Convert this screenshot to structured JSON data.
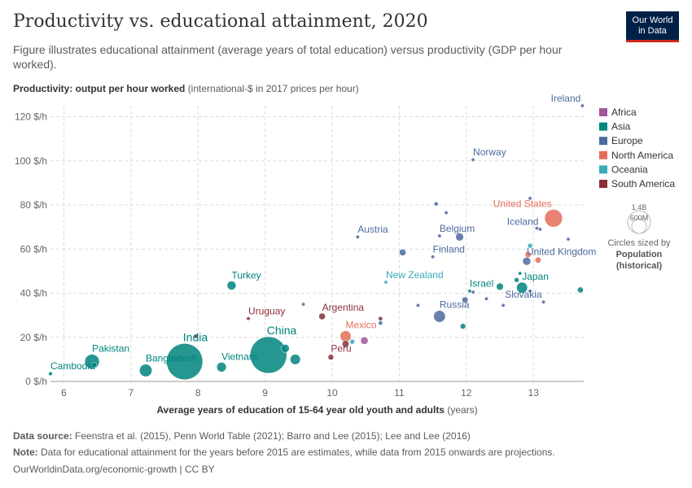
{
  "header": {
    "title": "Productivity vs. educational attainment, 2020",
    "subtitle": "Figure illustrates educational attainment (average years of total education) versus productivity (GDP per hour worked).",
    "logo_line1": "Our World",
    "logo_line2": "in Data"
  },
  "footer": {
    "source_label": "Data source:",
    "source_text": "Feenstra et al. (2015), Penn World Table (2021); Barro and Lee (2015); Lee and Lee (2016)",
    "note_label": "Note:",
    "note_text": "Data for educational attainment for the years before 2015 are estimates, while data from 2015 onwards are projections.",
    "credit": "OurWorldinData.org/economic-growth | CC BY"
  },
  "colors": {
    "Africa": "#a2559c",
    "Asia": "#00847e",
    "Europe": "#4c6a9c",
    "North America": "#e56e5a",
    "Oceania": "#38aaba",
    "South America": "#883039"
  },
  "chart_data": {
    "type": "scatter",
    "title": "Productivity vs. educational attainment, 2020",
    "ylabel_bold": "Productivity: output per hour worked",
    "ylabel_rest": "(international-$ in 2017 prices per hour)",
    "xlabel_bold": "Average years of education of 15-64 year old youth and adults",
    "xlabel_rest": "(years)",
    "xlim": [
      5.8,
      13.75
    ],
    "ylim": [
      0,
      125
    ],
    "x_ticks": [
      6,
      7,
      8,
      9,
      10,
      11,
      12,
      13
    ],
    "y_ticks": [
      0,
      20,
      40,
      60,
      80,
      100,
      120
    ],
    "y_tick_suffix": " $/h",
    "grid": true,
    "legend_position": "right",
    "size_legend": {
      "big": "1.4B",
      "small": "600M",
      "caption1": "Circles sized by",
      "caption2": "Population",
      "caption3": "(historical)"
    },
    "legend": [
      "Africa",
      "Asia",
      "Europe",
      "North America",
      "Oceania",
      "South America"
    ],
    "points": [
      {
        "label": "Ireland",
        "x": 13.73,
        "y": 125,
        "pop": 5,
        "region": "Europe"
      },
      {
        "label": "Norway",
        "x": 12.1,
        "y": 100.5,
        "pop": 5.4,
        "region": "Europe"
      },
      {
        "label": "United States",
        "x": 13.3,
        "y": 74,
        "pop": 331,
        "region": "North America"
      },
      {
        "label": "Iceland",
        "x": 13.1,
        "y": 69,
        "pop": 0.4,
        "region": "Europe"
      },
      {
        "label": "Austria",
        "x": 10.38,
        "y": 65.5,
        "pop": 9,
        "region": "Europe"
      },
      {
        "label": "Belgium",
        "x": 11.6,
        "y": 66,
        "pop": 11.5,
        "region": "Europe"
      },
      {
        "label": "Finland",
        "x": 11.5,
        "y": 56.5,
        "pop": 5.5,
        "region": "Europe"
      },
      {
        "label": "United Kingdom",
        "x": 12.9,
        "y": 54.5,
        "pop": 67,
        "region": "Europe"
      },
      {
        "label": "New Zealand",
        "x": 10.8,
        "y": 45,
        "pop": 5,
        "region": "Oceania"
      },
      {
        "label": "Japan",
        "x": 12.83,
        "y": 42.5,
        "pop": 126,
        "region": "Asia"
      },
      {
        "label": "Israel",
        "x": 12.05,
        "y": 41,
        "pop": 9,
        "region": "Asia"
      },
      {
        "label": "Slovakia",
        "x": 13.15,
        "y": 36,
        "pop": 5.5,
        "region": "Europe"
      },
      {
        "label": "Turkey",
        "x": 8.5,
        "y": 43.5,
        "pop": 84,
        "region": "Asia"
      },
      {
        "label": "Russia",
        "x": 11.6,
        "y": 29.5,
        "pop": 146,
        "region": "Europe"
      },
      {
        "label": "Argentina",
        "x": 9.85,
        "y": 29.5,
        "pop": 45,
        "region": "South America"
      },
      {
        "label": "Uruguay",
        "x": 8.75,
        "y": 28.5,
        "pop": 3.5,
        "region": "South America"
      },
      {
        "label": "Mexico",
        "x": 10.2,
        "y": 20.5,
        "pop": 129,
        "region": "North America"
      },
      {
        "label": "India",
        "x": 7.8,
        "y": 9,
        "pop": 1380,
        "region": "Asia"
      },
      {
        "label": "China",
        "x": 9.05,
        "y": 12,
        "pop": 1410,
        "region": "Asia"
      },
      {
        "label": "Peru",
        "x": 9.98,
        "y": 11,
        "pop": 33,
        "region": "South America"
      },
      {
        "label": "Pakistan",
        "x": 6.42,
        "y": 9,
        "pop": 220,
        "region": "Asia"
      },
      {
        "label": "Bangladesh",
        "x": 7.22,
        "y": 5,
        "pop": 165,
        "region": "Asia"
      },
      {
        "label": "Vietnam",
        "x": 8.35,
        "y": 6.5,
        "pop": 97,
        "region": "Asia"
      },
      {
        "label": "Cambodia",
        "x": 5.8,
        "y": 3.5,
        "pop": 16,
        "region": "Asia"
      },
      {
        "label": "",
        "x": 11.55,
        "y": 80.5,
        "pop": 17.5,
        "region": "Europe"
      },
      {
        "label": "",
        "x": 11.7,
        "y": 76.5,
        "pop": 0.6,
        "region": "Europe"
      },
      {
        "label": "",
        "x": 12.95,
        "y": 83,
        "pop": 5.8,
        "region": "Europe"
      },
      {
        "label": "",
        "x": 13.05,
        "y": 69.5,
        "pop": 10.4,
        "region": "Europe"
      },
      {
        "label": "",
        "x": 11.9,
        "y": 65.5,
        "pop": 65,
        "region": "Europe"
      },
      {
        "label": "",
        "x": 13.52,
        "y": 64.5,
        "pop": 8.6,
        "region": "Europe"
      },
      {
        "label": "",
        "x": 12.95,
        "y": 61.5,
        "pop": 25,
        "region": "Oceania"
      },
      {
        "label": "",
        "x": 13.07,
        "y": 55,
        "pop": 38,
        "region": "North America"
      },
      {
        "label": "",
        "x": 12.92,
        "y": 57.5,
        "pop": 38,
        "region": "North America"
      },
      {
        "label": "",
        "x": 11.05,
        "y": 58.5,
        "pop": 47,
        "region": "Europe"
      },
      {
        "label": "",
        "x": 12.8,
        "y": 49,
        "pop": 3,
        "region": "Asia"
      },
      {
        "label": "",
        "x": 12.75,
        "y": 46,
        "pop": 24,
        "region": "Asia"
      },
      {
        "label": "",
        "x": 12.5,
        "y": 43,
        "pop": 52,
        "region": "Asia"
      },
      {
        "label": "",
        "x": 12.95,
        "y": 41,
        "pop": 2.1,
        "region": "Europe"
      },
      {
        "label": "",
        "x": 13.7,
        "y": 41.5,
        "pop": 35,
        "region": "Asia"
      },
      {
        "label": "",
        "x": 12.1,
        "y": 40.5,
        "pop": 10.7,
        "region": "Europe"
      },
      {
        "label": "",
        "x": 11.98,
        "y": 37,
        "pop": 38,
        "region": "Europe"
      },
      {
        "label": "",
        "x": 12.3,
        "y": 37.5,
        "pop": 1.3,
        "region": "Europe"
      },
      {
        "label": "",
        "x": 12.55,
        "y": 34.5,
        "pop": 4,
        "region": "Europe"
      },
      {
        "label": "",
        "x": 11.28,
        "y": 34.5,
        "pop": 4.1,
        "region": "Europe"
      },
      {
        "label": "",
        "x": 9.57,
        "y": 35,
        "pop": 10.4,
        "region": "Europe"
      },
      {
        "label": "",
        "x": 10.72,
        "y": 28.5,
        "pop": 19,
        "region": "South America"
      },
      {
        "label": "",
        "x": 10.72,
        "y": 26.5,
        "pop": 19,
        "region": "Europe"
      },
      {
        "label": "",
        "x": 11.95,
        "y": 25,
        "pop": 32,
        "region": "Asia"
      },
      {
        "label": "",
        "x": 10.48,
        "y": 18.5,
        "pop": 59,
        "region": "Africa"
      },
      {
        "label": "",
        "x": 10.3,
        "y": 18,
        "pop": 25,
        "region": "Oceania"
      },
      {
        "label": "",
        "x": 10.2,
        "y": 17,
        "pop": 50,
        "region": "South America"
      },
      {
        "label": "",
        "x": 9.3,
        "y": 15,
        "pop": 69,
        "region": "Asia"
      },
      {
        "label": "",
        "x": 9.45,
        "y": 10,
        "pop": 110,
        "region": "Asia"
      },
      {
        "label": "",
        "x": 7.97,
        "y": 20.5,
        "pop": 20,
        "region": "South America"
      },
      {
        "label": "",
        "x": 6.45,
        "y": 7.5,
        "pop": 27,
        "region": "Asia"
      }
    ]
  }
}
